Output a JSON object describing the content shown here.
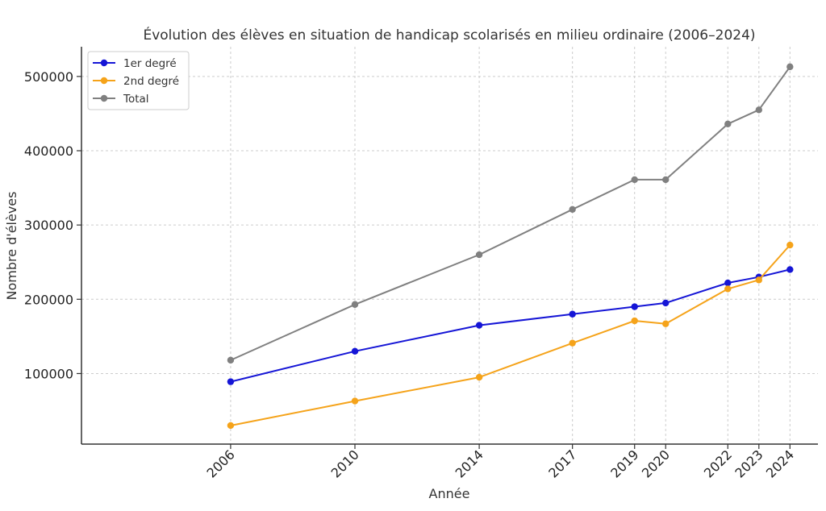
{
  "chart_data": {
    "type": "line",
    "title": "Évolution des élèves en situation de handicap scolarisés en milieu ordinaire (2006–2024)",
    "xlabel": "Année",
    "ylabel": "Nombre d'élèves",
    "x": [
      2006,
      2010,
      2014,
      2017,
      2019,
      2020,
      2022,
      2023,
      2024
    ],
    "x_tick_labels": [
      "2006",
      "2010",
      "2014",
      "2017",
      "2019",
      "2020",
      "2022",
      "2023",
      "2024"
    ],
    "y_ticks": [
      100000,
      200000,
      300000,
      400000,
      500000
    ],
    "y_tick_labels": [
      "100000",
      "200000",
      "300000",
      "400000",
      "500000"
    ],
    "xlim": [
      2001.2,
      2024.9
    ],
    "ylim": [
      5000,
      540000
    ],
    "grid": true,
    "legend_position": "top-left",
    "series": [
      {
        "name": "1er degré",
        "color": "#1515d6",
        "values": [
          89000,
          130000,
          165000,
          180000,
          190000,
          195000,
          222000,
          230000,
          240000
        ]
      },
      {
        "name": "2nd degré",
        "color": "#f5a31a",
        "values": [
          30000,
          63000,
          95000,
          141000,
          171000,
          167000,
          214000,
          226000,
          273000
        ]
      },
      {
        "name": "Total",
        "color": "#808080",
        "values": [
          118000,
          193000,
          260000,
          321000,
          361000,
          361000,
          436000,
          455000,
          513000
        ]
      }
    ]
  }
}
